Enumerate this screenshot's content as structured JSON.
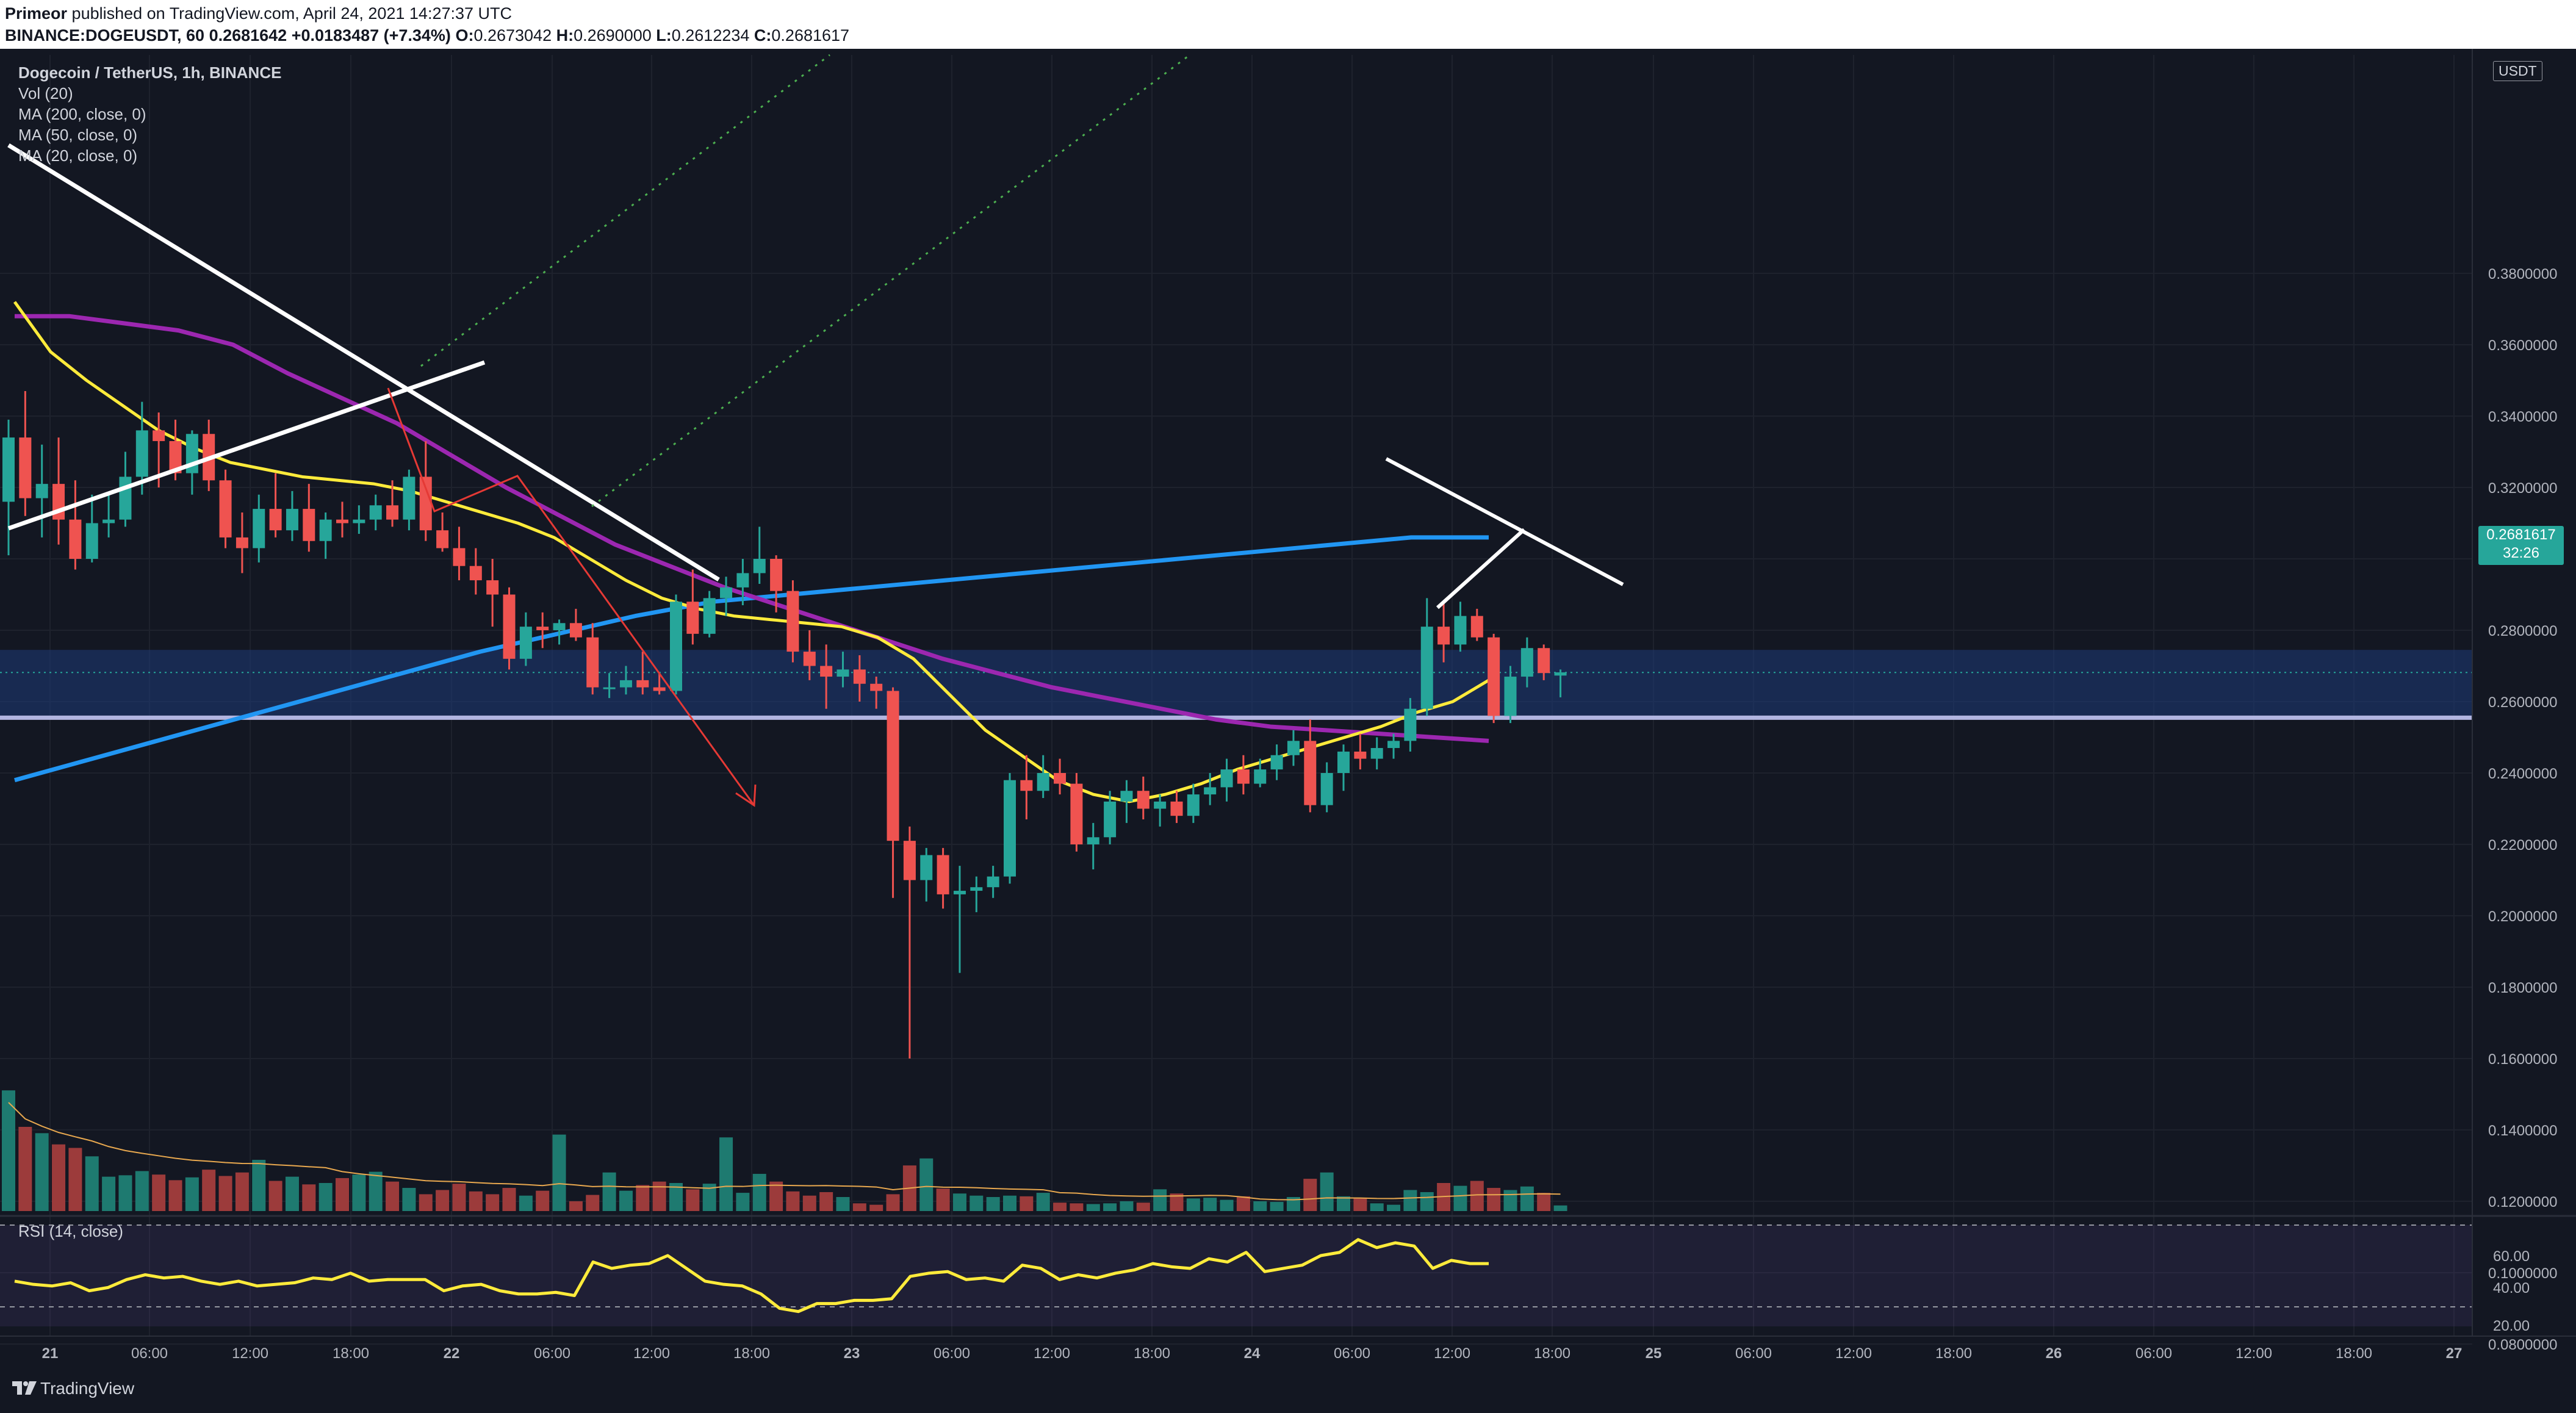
{
  "header": {
    "author": "Primeor",
    "published_text": " published on TradingView.com, April 24, 2021 14:27:37 UTC",
    "symbol": "BINANCE:DOGEUSDT, 60",
    "last": "0.2681642",
    "change": "+0.0183487 (+7.34%)",
    "o_label": "O:",
    "o": "0.2673042",
    "h_label": "H:",
    "h": "0.2690000",
    "l_label": "L:",
    "l": "0.2612234",
    "c_label": "C:",
    "c": "0.2681617"
  },
  "legend": {
    "title": "Dogecoin / TetherUS, 1h, BINANCE",
    "items": [
      "Vol (20)",
      "MA (200, close, 0)",
      "MA (50, close, 0)",
      "MA (20, close, 0)"
    ]
  },
  "price_axis": {
    "currency": "USDT",
    "labels": [
      "0.3800000",
      "0.3600000",
      "0.3400000",
      "0.3200000",
      "0.3000000",
      "0.2800000",
      "0.2600000",
      "0.2400000",
      "0.2200000",
      "0.2000000",
      "0.1800000",
      "0.1600000",
      "0.1400000",
      "0.1200000",
      "0.1000000",
      "0.0800000"
    ],
    "current_price": "0.2681617",
    "countdown": "32:26"
  },
  "time_axis": {
    "labels": [
      "21",
      "06:00",
      "12:00",
      "18:00",
      "22",
      "06:00",
      "12:00",
      "18:00",
      "23",
      "06:00",
      "12:00",
      "18:00",
      "24",
      "06:00",
      "12:00",
      "18:00",
      "25",
      "06:00",
      "12:00",
      "18:00",
      "26",
      "06:00",
      "12:00",
      "18:00",
      "27"
    ]
  },
  "rsi": {
    "label": "RSI (14, close)",
    "axis_labels": [
      "60.00",
      "40.00",
      "20.00"
    ]
  },
  "brand": {
    "name": "TradingView"
  },
  "colors": {
    "background": "#131722",
    "up": "#26a69a",
    "down": "#ef5350",
    "ma200": "#2196f3",
    "ma50": "#9c27b0",
    "ma20": "#ffeb3b",
    "zone": "#1e3a78",
    "rsi": "#ffeb3b"
  },
  "chart_data": {
    "type": "candlestick",
    "symbol": "DOGEUSDT",
    "timeframe": "1h",
    "ylim": [
      0.08,
      0.39
    ],
    "last_price": 0.2681617,
    "support_zone": [
      0.2555,
      0.2745
    ],
    "support_line": 0.2555,
    "candles": [
      {
        "o": 0.316,
        "h": 0.339,
        "l": 0.301,
        "c": 0.334
      },
      {
        "o": 0.334,
        "h": 0.347,
        "l": 0.312,
        "c": 0.317
      },
      {
        "o": 0.317,
        "h": 0.332,
        "l": 0.306,
        "c": 0.321
      },
      {
        "o": 0.321,
        "h": 0.334,
        "l": 0.304,
        "c": 0.311
      },
      {
        "o": 0.311,
        "h": 0.322,
        "l": 0.297,
        "c": 0.3
      },
      {
        "o": 0.3,
        "h": 0.318,
        "l": 0.299,
        "c": 0.31
      },
      {
        "o": 0.31,
        "h": 0.318,
        "l": 0.306,
        "c": 0.311
      },
      {
        "o": 0.311,
        "h": 0.33,
        "l": 0.309,
        "c": 0.323
      },
      {
        "o": 0.323,
        "h": 0.344,
        "l": 0.318,
        "c": 0.336
      },
      {
        "o": 0.336,
        "h": 0.341,
        "l": 0.32,
        "c": 0.333
      },
      {
        "o": 0.333,
        "h": 0.339,
        "l": 0.322,
        "c": 0.324
      },
      {
        "o": 0.324,
        "h": 0.336,
        "l": 0.318,
        "c": 0.335
      },
      {
        "o": 0.335,
        "h": 0.339,
        "l": 0.319,
        "c": 0.322
      },
      {
        "o": 0.322,
        "h": 0.325,
        "l": 0.303,
        "c": 0.306
      },
      {
        "o": 0.306,
        "h": 0.313,
        "l": 0.296,
        "c": 0.303
      },
      {
        "o": 0.303,
        "h": 0.318,
        "l": 0.299,
        "c": 0.314
      },
      {
        "o": 0.314,
        "h": 0.324,
        "l": 0.306,
        "c": 0.308
      },
      {
        "o": 0.308,
        "h": 0.319,
        "l": 0.305,
        "c": 0.314
      },
      {
        "o": 0.314,
        "h": 0.321,
        "l": 0.302,
        "c": 0.305
      },
      {
        "o": 0.305,
        "h": 0.313,
        "l": 0.3,
        "c": 0.311
      },
      {
        "o": 0.311,
        "h": 0.316,
        "l": 0.306,
        "c": 0.31
      },
      {
        "o": 0.31,
        "h": 0.315,
        "l": 0.307,
        "c": 0.311
      },
      {
        "o": 0.311,
        "h": 0.318,
        "l": 0.308,
        "c": 0.315
      },
      {
        "o": 0.315,
        "h": 0.322,
        "l": 0.309,
        "c": 0.311
      },
      {
        "o": 0.311,
        "h": 0.325,
        "l": 0.308,
        "c": 0.323
      },
      {
        "o": 0.323,
        "h": 0.333,
        "l": 0.305,
        "c": 0.308
      },
      {
        "o": 0.308,
        "h": 0.313,
        "l": 0.302,
        "c": 0.303
      },
      {
        "o": 0.303,
        "h": 0.309,
        "l": 0.294,
        "c": 0.298
      },
      {
        "o": 0.298,
        "h": 0.303,
        "l": 0.29,
        "c": 0.294
      },
      {
        "o": 0.294,
        "h": 0.3,
        "l": 0.281,
        "c": 0.29
      },
      {
        "o": 0.29,
        "h": 0.292,
        "l": 0.269,
        "c": 0.272
      },
      {
        "o": 0.272,
        "h": 0.285,
        "l": 0.27,
        "c": 0.281
      },
      {
        "o": 0.281,
        "h": 0.285,
        "l": 0.275,
        "c": 0.28
      },
      {
        "o": 0.28,
        "h": 0.283,
        "l": 0.276,
        "c": 0.282
      },
      {
        "o": 0.282,
        "h": 0.286,
        "l": 0.277,
        "c": 0.278
      },
      {
        "o": 0.278,
        "h": 0.282,
        "l": 0.262,
        "c": 0.264
      },
      {
        "o": 0.264,
        "h": 0.268,
        "l": 0.261,
        "c": 0.264
      },
      {
        "o": 0.264,
        "h": 0.27,
        "l": 0.262,
        "c": 0.266
      },
      {
        "o": 0.266,
        "h": 0.274,
        "l": 0.262,
        "c": 0.264
      },
      {
        "o": 0.264,
        "h": 0.268,
        "l": 0.262,
        "c": 0.263
      },
      {
        "o": 0.263,
        "h": 0.29,
        "l": 0.262,
        "c": 0.288
      },
      {
        "o": 0.288,
        "h": 0.297,
        "l": 0.276,
        "c": 0.279
      },
      {
        "o": 0.279,
        "h": 0.291,
        "l": 0.278,
        "c": 0.289
      },
      {
        "o": 0.289,
        "h": 0.295,
        "l": 0.284,
        "c": 0.292
      },
      {
        "o": 0.292,
        "h": 0.3,
        "l": 0.287,
        "c": 0.296
      },
      {
        "o": 0.296,
        "h": 0.309,
        "l": 0.293,
        "c": 0.3
      },
      {
        "o": 0.3,
        "h": 0.301,
        "l": 0.285,
        "c": 0.291
      },
      {
        "o": 0.291,
        "h": 0.294,
        "l": 0.271,
        "c": 0.274
      },
      {
        "o": 0.274,
        "h": 0.28,
        "l": 0.266,
        "c": 0.27
      },
      {
        "o": 0.27,
        "h": 0.276,
        "l": 0.258,
        "c": 0.267
      },
      {
        "o": 0.267,
        "h": 0.274,
        "l": 0.264,
        "c": 0.269
      },
      {
        "o": 0.269,
        "h": 0.273,
        "l": 0.26,
        "c": 0.265
      },
      {
        "o": 0.265,
        "h": 0.267,
        "l": 0.258,
        "c": 0.263
      },
      {
        "o": 0.263,
        "h": 0.264,
        "l": 0.205,
        "c": 0.221
      },
      {
        "o": 0.221,
        "h": 0.225,
        "l": 0.16,
        "c": 0.21
      },
      {
        "o": 0.21,
        "h": 0.219,
        "l": 0.204,
        "c": 0.217
      },
      {
        "o": 0.217,
        "h": 0.219,
        "l": 0.202,
        "c": 0.206
      },
      {
        "o": 0.206,
        "h": 0.214,
        "l": 0.184,
        "c": 0.207
      },
      {
        "o": 0.207,
        "h": 0.211,
        "l": 0.201,
        "c": 0.208
      },
      {
        "o": 0.208,
        "h": 0.214,
        "l": 0.205,
        "c": 0.211
      },
      {
        "o": 0.211,
        "h": 0.24,
        "l": 0.209,
        "c": 0.238
      },
      {
        "o": 0.238,
        "h": 0.245,
        "l": 0.227,
        "c": 0.235
      },
      {
        "o": 0.235,
        "h": 0.245,
        "l": 0.233,
        "c": 0.24
      },
      {
        "o": 0.24,
        "h": 0.244,
        "l": 0.234,
        "c": 0.237
      },
      {
        "o": 0.237,
        "h": 0.24,
        "l": 0.218,
        "c": 0.22
      },
      {
        "o": 0.22,
        "h": 0.226,
        "l": 0.213,
        "c": 0.222
      },
      {
        "o": 0.222,
        "h": 0.235,
        "l": 0.22,
        "c": 0.232
      },
      {
        "o": 0.232,
        "h": 0.238,
        "l": 0.226,
        "c": 0.235
      },
      {
        "o": 0.235,
        "h": 0.239,
        "l": 0.227,
        "c": 0.23
      },
      {
        "o": 0.23,
        "h": 0.234,
        "l": 0.225,
        "c": 0.232
      },
      {
        "o": 0.232,
        "h": 0.235,
        "l": 0.226,
        "c": 0.228
      },
      {
        "o": 0.228,
        "h": 0.237,
        "l": 0.226,
        "c": 0.234
      },
      {
        "o": 0.234,
        "h": 0.24,
        "l": 0.231,
        "c": 0.236
      },
      {
        "o": 0.236,
        "h": 0.244,
        "l": 0.232,
        "c": 0.241
      },
      {
        "o": 0.241,
        "h": 0.245,
        "l": 0.234,
        "c": 0.237
      },
      {
        "o": 0.237,
        "h": 0.244,
        "l": 0.236,
        "c": 0.241
      },
      {
        "o": 0.241,
        "h": 0.248,
        "l": 0.238,
        "c": 0.245
      },
      {
        "o": 0.245,
        "h": 0.252,
        "l": 0.242,
        "c": 0.249
      },
      {
        "o": 0.249,
        "h": 0.255,
        "l": 0.229,
        "c": 0.231
      },
      {
        "o": 0.231,
        "h": 0.243,
        "l": 0.229,
        "c": 0.24
      },
      {
        "o": 0.24,
        "h": 0.248,
        "l": 0.235,
        "c": 0.246
      },
      {
        "o": 0.246,
        "h": 0.251,
        "l": 0.241,
        "c": 0.244
      },
      {
        "o": 0.244,
        "h": 0.25,
        "l": 0.241,
        "c": 0.247
      },
      {
        "o": 0.247,
        "h": 0.251,
        "l": 0.244,
        "c": 0.249
      },
      {
        "o": 0.249,
        "h": 0.261,
        "l": 0.246,
        "c": 0.258
      },
      {
        "o": 0.258,
        "h": 0.289,
        "l": 0.256,
        "c": 0.281
      },
      {
        "o": 0.281,
        "h": 0.288,
        "l": 0.271,
        "c": 0.276
      },
      {
        "o": 0.276,
        "h": 0.288,
        "l": 0.274,
        "c": 0.284
      },
      {
        "o": 0.284,
        "h": 0.286,
        "l": 0.277,
        "c": 0.278
      },
      {
        "o": 0.278,
        "h": 0.279,
        "l": 0.254,
        "c": 0.256
      },
      {
        "o": 0.256,
        "h": 0.27,
        "l": 0.254,
        "c": 0.267
      },
      {
        "o": 0.267,
        "h": 0.278,
        "l": 0.264,
        "c": 0.275
      },
      {
        "o": 0.275,
        "h": 0.276,
        "l": 0.266,
        "c": 0.268
      },
      {
        "o": 0.2673,
        "h": 0.269,
        "l": 0.2612,
        "c": 0.2682
      }
    ],
    "volume": [
      0.172,
      0.12,
      0.111,
      0.095,
      0.09,
      0.078,
      0.049,
      0.051,
      0.057,
      0.052,
      0.044,
      0.048,
      0.059,
      0.05,
      0.055,
      0.073,
      0.043,
      0.049,
      0.038,
      0.04,
      0.047,
      0.052,
      0.056,
      0.042,
      0.033,
      0.024,
      0.03,
      0.039,
      0.028,
      0.024,
      0.033,
      0.022,
      0.029,
      0.109,
      0.014,
      0.023,
      0.055,
      0.029,
      0.037,
      0.042,
      0.04,
      0.031,
      0.039,
      0.105,
      0.026,
      0.053,
      0.042,
      0.028,
      0.022,
      0.027,
      0.02,
      0.011,
      0.009,
      0.024,
      0.065,
      0.075,
      0.032,
      0.025,
      0.022,
      0.02,
      0.022,
      0.021,
      0.026,
      0.012,
      0.011,
      0.01,
      0.011,
      0.014,
      0.012,
      0.031,
      0.025,
      0.018,
      0.019,
      0.016,
      0.021,
      0.014,
      0.013,
      0.02,
      0.046,
      0.055,
      0.021,
      0.019,
      0.011,
      0.009,
      0.03,
      0.027,
      0.04,
      0.036,
      0.043,
      0.033,
      0.03,
      0.035,
      0.026,
      0.008
    ],
    "ma20": [
      0.372,
      0.358,
      0.35,
      0.343,
      0.336,
      0.331,
      0.327,
      0.325,
      0.323,
      0.322,
      0.321,
      0.319,
      0.316,
      0.313,
      0.31,
      0.306,
      0.3,
      0.294,
      0.289,
      0.286,
      0.284,
      0.283,
      0.282,
      0.281,
      0.278,
      0.272,
      0.262,
      0.252,
      0.245,
      0.238,
      0.234,
      0.232,
      0.234,
      0.237,
      0.241,
      0.244,
      0.247,
      0.25,
      0.253,
      0.257,
      0.26,
      0.266
    ],
    "ma50": [
      0.368,
      0.368,
      0.366,
      0.364,
      0.36,
      0.352,
      0.345,
      0.338,
      0.329,
      0.32,
      0.312,
      0.304,
      0.298,
      0.292,
      0.287,
      0.282,
      0.277,
      0.272,
      0.268,
      0.264,
      0.261,
      0.258,
      0.255,
      0.253,
      0.252,
      0.251,
      0.25,
      0.249
    ],
    "ma200": [
      0.238,
      0.244,
      0.25,
      0.256,
      0.262,
      0.268,
      0.274,
      0.279,
      0.284,
      0.288,
      0.29,
      0.292,
      0.294,
      0.296,
      0.298,
      0.3,
      0.302,
      0.304,
      0.306,
      0.306
    ],
    "rsi_values": [
      44,
      42,
      41,
      43,
      38,
      40,
      45,
      48,
      46,
      47,
      44,
      42,
      44,
      41,
      42,
      43,
      46,
      45,
      49,
      44,
      45,
      45,
      45,
      38,
      41,
      42,
      38,
      36,
      36,
      37,
      35,
      56,
      52,
      54,
      55,
      60,
      52,
      44,
      42,
      41,
      36,
      27,
      25,
      30,
      30,
      32,
      32,
      33,
      47,
      49,
      50,
      45,
      46,
      44,
      54,
      52,
      45,
      48,
      46,
      49,
      51,
      55,
      53,
      52,
      58,
      56,
      62,
      50,
      52,
      54,
      60,
      62,
      70,
      65,
      68,
      66,
      52,
      57,
      55,
      55
    ]
  }
}
